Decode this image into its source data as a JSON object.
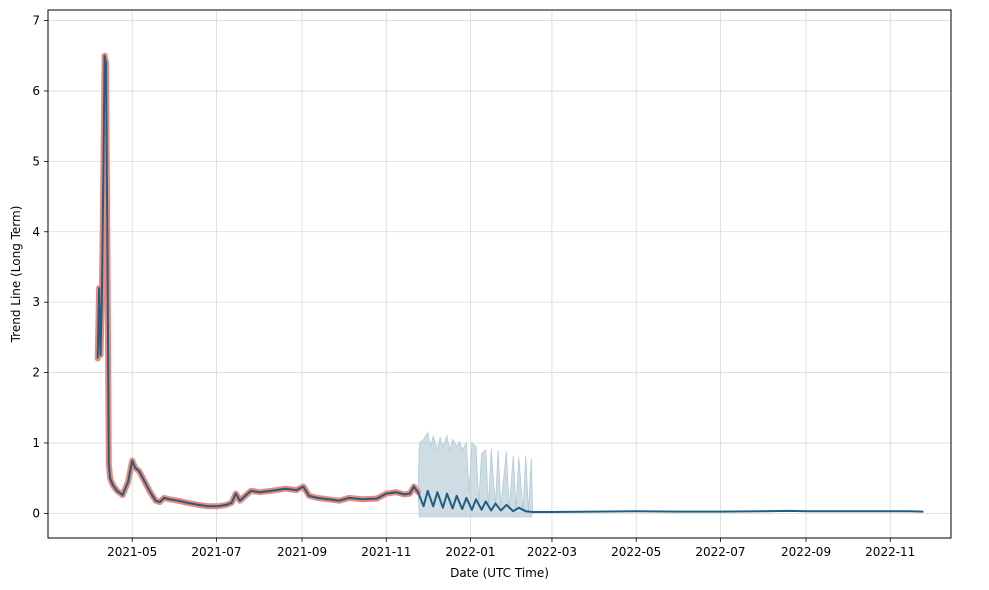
{
  "chart_data": {
    "type": "line",
    "xlabel": "Date (UTC Time)",
    "ylabel": "Trend Line (Long Term)",
    "xlim": [
      "2021-03-01",
      "2022-12-15"
    ],
    "ylim": [
      -0.35,
      7.15
    ],
    "x_ticks": [
      "2021-05",
      "2021-07",
      "2021-09",
      "2021-11",
      "2022-01",
      "2022-03",
      "2022-05",
      "2022-07",
      "2022-09",
      "2022-11"
    ],
    "y_ticks": [
      0,
      1,
      2,
      3,
      4,
      5,
      6,
      7
    ],
    "grid": true,
    "colors": {
      "trend": "#1f5f85",
      "history": "#ee8878",
      "band": "#b4cad6"
    },
    "series": [
      {
        "role": "history",
        "x": [
          "2021-04-06",
          "2021-04-07",
          "2021-04-08",
          "2021-04-09",
          "2021-04-10",
          "2021-04-11",
          "2021-04-12",
          "2021-04-13",
          "2021-04-14",
          "2021-04-15",
          "2021-04-17",
          "2021-04-20",
          "2021-04-24",
          "2021-04-28",
          "2021-05-01",
          "2021-05-03",
          "2021-05-06",
          "2021-05-10",
          "2021-05-14",
          "2021-05-18",
          "2021-05-21",
          "2021-05-24",
          "2021-05-28",
          "2021-06-03",
          "2021-06-10",
          "2021-06-18",
          "2021-06-25",
          "2021-07-02",
          "2021-07-08",
          "2021-07-12",
          "2021-07-15",
          "2021-07-18",
          "2021-07-22",
          "2021-07-26",
          "2021-08-01",
          "2021-08-10",
          "2021-08-20",
          "2021-08-28",
          "2021-09-02",
          "2021-09-06",
          "2021-09-12",
          "2021-09-20",
          "2021-09-28",
          "2021-10-05",
          "2021-10-15",
          "2021-10-25",
          "2021-11-01",
          "2021-11-08",
          "2021-11-14",
          "2021-11-18",
          "2021-11-21",
          "2021-11-24"
        ],
        "y": [
          2.2,
          3.2,
          2.25,
          3.0,
          4.6,
          6.5,
          6.4,
          3.8,
          0.7,
          0.5,
          0.4,
          0.32,
          0.26,
          0.45,
          0.75,
          0.65,
          0.6,
          0.45,
          0.3,
          0.18,
          0.16,
          0.22,
          0.2,
          0.18,
          0.15,
          0.12,
          0.1,
          0.1,
          0.12,
          0.15,
          0.28,
          0.18,
          0.25,
          0.32,
          0.3,
          0.32,
          0.35,
          0.33,
          0.38,
          0.25,
          0.22,
          0.2,
          0.18,
          0.22,
          0.2,
          0.21,
          0.28,
          0.3,
          0.27,
          0.28,
          0.38,
          0.3
        ]
      },
      {
        "role": "trend",
        "x": [
          "2021-04-06",
          "2021-04-07",
          "2021-04-08",
          "2021-04-09",
          "2021-04-10",
          "2021-04-11",
          "2021-04-12",
          "2021-04-13",
          "2021-04-14",
          "2021-04-15",
          "2021-04-17",
          "2021-04-20",
          "2021-04-24",
          "2021-04-28",
          "2021-05-01",
          "2021-05-03",
          "2021-05-06",
          "2021-05-10",
          "2021-05-14",
          "2021-05-18",
          "2021-05-21",
          "2021-05-24",
          "2021-05-28",
          "2021-06-03",
          "2021-06-10",
          "2021-06-18",
          "2021-06-25",
          "2021-07-02",
          "2021-07-08",
          "2021-07-12",
          "2021-07-15",
          "2021-07-18",
          "2021-07-22",
          "2021-07-26",
          "2021-08-01",
          "2021-08-10",
          "2021-08-20",
          "2021-08-28",
          "2021-09-02",
          "2021-09-06",
          "2021-09-12",
          "2021-09-20",
          "2021-09-28",
          "2021-10-05",
          "2021-10-15",
          "2021-10-25",
          "2021-11-01",
          "2021-11-08",
          "2021-11-14",
          "2021-11-18",
          "2021-11-21",
          "2021-11-24",
          "2021-11-28",
          "2021-12-01",
          "2021-12-05",
          "2021-12-08",
          "2021-12-12",
          "2021-12-15",
          "2021-12-19",
          "2021-12-22",
          "2021-12-26",
          "2021-12-29",
          "2022-01-02",
          "2022-01-05",
          "2022-01-09",
          "2022-01-12",
          "2022-01-16",
          "2022-01-19",
          "2022-01-23",
          "2022-01-27",
          "2022-02-01",
          "2022-02-05",
          "2022-02-10",
          "2022-02-15",
          "2022-03-01",
          "2022-04-01",
          "2022-05-01",
          "2022-06-01",
          "2022-07-01",
          "2022-08-01",
          "2022-08-20",
          "2022-09-01",
          "2022-10-01",
          "2022-11-01",
          "2022-11-15",
          "2022-11-25"
        ],
        "y": [
          2.2,
          3.2,
          2.25,
          3.0,
          4.6,
          6.5,
          6.4,
          3.8,
          0.7,
          0.5,
          0.4,
          0.32,
          0.26,
          0.45,
          0.75,
          0.65,
          0.6,
          0.45,
          0.3,
          0.18,
          0.16,
          0.22,
          0.2,
          0.18,
          0.15,
          0.12,
          0.1,
          0.1,
          0.12,
          0.15,
          0.28,
          0.18,
          0.25,
          0.32,
          0.3,
          0.32,
          0.35,
          0.33,
          0.38,
          0.25,
          0.22,
          0.2,
          0.18,
          0.22,
          0.2,
          0.21,
          0.28,
          0.3,
          0.27,
          0.28,
          0.38,
          0.3,
          0.1,
          0.32,
          0.1,
          0.3,
          0.08,
          0.28,
          0.07,
          0.25,
          0.06,
          0.22,
          0.05,
          0.2,
          0.05,
          0.17,
          0.04,
          0.14,
          0.04,
          0.12,
          0.03,
          0.08,
          0.03,
          0.02,
          0.02,
          0.025,
          0.03,
          0.025,
          0.025,
          0.03,
          0.035,
          0.03,
          0.03,
          0.03,
          0.03,
          0.025
        ]
      },
      {
        "role": "band",
        "x": [
          "2021-11-24",
          "2021-11-25",
          "2021-11-28",
          "2021-12-01",
          "2021-12-03",
          "2021-12-05",
          "2021-12-08",
          "2021-12-10",
          "2021-12-12",
          "2021-12-15",
          "2021-12-17",
          "2021-12-19",
          "2021-12-22",
          "2021-12-24",
          "2021-12-26",
          "2021-12-29",
          "2021-12-31",
          "2022-01-02",
          "2022-01-05",
          "2022-01-07",
          "2022-01-09",
          "2022-01-12",
          "2022-01-14",
          "2022-01-16",
          "2022-01-19",
          "2022-01-21",
          "2022-01-23",
          "2022-01-27",
          "2022-01-29",
          "2022-02-01",
          "2022-02-03",
          "2022-02-05",
          "2022-02-08",
          "2022-02-10",
          "2022-02-12",
          "2022-02-14",
          "2022-02-15",
          "2022-02-17"
        ],
        "upper": [
          0.3,
          1.0,
          1.05,
          1.15,
          0.95,
          1.1,
          0.9,
          1.08,
          0.95,
          1.1,
          0.9,
          1.05,
          0.95,
          1.02,
          0.9,
          1.0,
          0.3,
          1.0,
          0.95,
          0.15,
          0.85,
          0.9,
          0.1,
          0.92,
          0.1,
          0.9,
          0.1,
          0.88,
          0.05,
          0.82,
          0.05,
          0.8,
          0.03,
          0.82,
          0.03,
          0.78,
          0.02,
          0.02
        ],
        "lower": [
          0.3,
          -0.05,
          -0.05,
          -0.05,
          -0.05,
          -0.05,
          -0.05,
          -0.05,
          -0.05,
          -0.05,
          -0.05,
          -0.05,
          -0.05,
          -0.05,
          -0.05,
          -0.05,
          -0.05,
          -0.05,
          -0.05,
          -0.05,
          -0.05,
          -0.05,
          -0.05,
          -0.05,
          -0.05,
          -0.05,
          -0.05,
          -0.05,
          -0.05,
          -0.05,
          -0.05,
          -0.05,
          -0.05,
          -0.05,
          -0.05,
          -0.05,
          0.0,
          0.02
        ]
      }
    ]
  }
}
